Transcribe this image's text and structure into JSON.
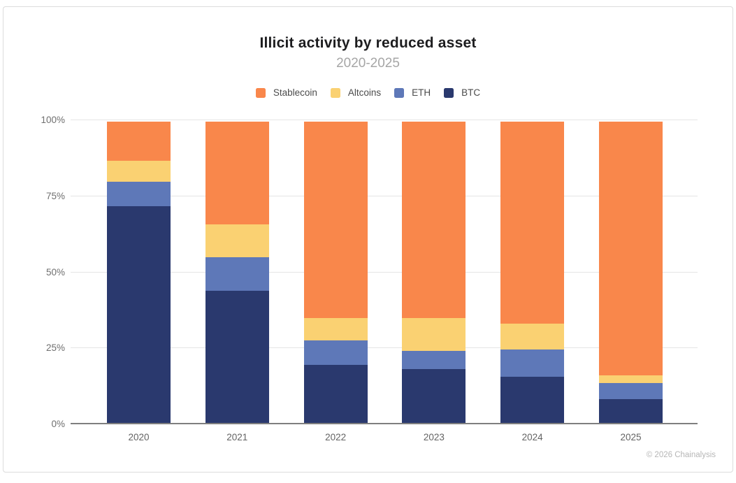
{
  "header": {
    "title": "Illicit activity by reduced asset",
    "subtitle": "2020-2025"
  },
  "legend": {
    "items": [
      {
        "label": "Stablecoin",
        "color": "#F9874B"
      },
      {
        "label": "Altcoins",
        "color": "#FAD172"
      },
      {
        "label": "ETH",
        "color": "#5E78B8"
      },
      {
        "label": "BTC",
        "color": "#2A396E"
      }
    ]
  },
  "chart_data": {
    "type": "bar",
    "stacked": true,
    "title": "Illicit activity by reduced asset",
    "subtitle": "2020-2025",
    "categories": [
      "2020",
      "2021",
      "2022",
      "2023",
      "2024",
      "2025"
    ],
    "series": [
      {
        "name": "BTC",
        "color": "#2A396E",
        "values": [
          72,
          44,
          19.5,
          18,
          15.5,
          8
        ]
      },
      {
        "name": "ETH",
        "color": "#5E78B8",
        "values": [
          8,
          11,
          8,
          6,
          9,
          5.5
        ]
      },
      {
        "name": "Altcoins",
        "color": "#FAD172",
        "values": [
          7,
          11,
          7.5,
          11,
          8.5,
          2.5
        ]
      },
      {
        "name": "Stablecoin",
        "color": "#F9874B",
        "values": [
          13,
          34,
          65,
          65,
          67,
          84
        ]
      }
    ],
    "xlabel": "",
    "ylabel": "",
    "ylim": [
      0,
      100
    ],
    "y_ticks": [
      0,
      25,
      50,
      75,
      100
    ],
    "y_tick_labels": [
      "0%",
      "25%",
      "50%",
      "75%",
      "100%"
    ],
    "grid": true,
    "legend_position": "top",
    "legend_order": [
      "Stablecoin",
      "Altcoins",
      "ETH",
      "BTC"
    ]
  },
  "footer": {
    "copyright": "© 2026 Chainalysis"
  },
  "colors": {
    "gridline": "#e5e5e5",
    "axis_line": "#7f7f7f",
    "tick_text": "#6f6f6f",
    "card_border": "#dcdcdc"
  }
}
